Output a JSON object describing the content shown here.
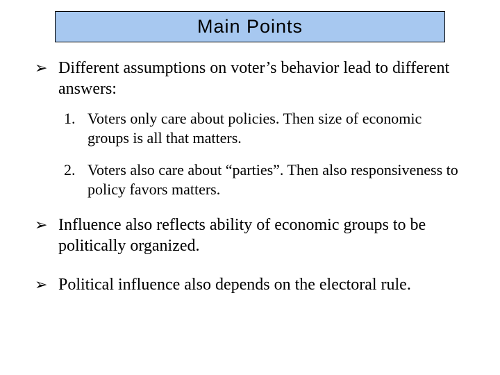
{
  "colors": {
    "title_bg": "#a7c8f0",
    "title_border": "#000000",
    "text": "#000000",
    "background": "#ffffff"
  },
  "typography": {
    "title_font": "Comic Sans MS",
    "title_fontsize": 27,
    "body_font": "Times New Roman",
    "bullet_fontsize": 24,
    "numbered_fontsize": 22
  },
  "title": "Main Points",
  "bullets": [
    {
      "marker": "➢",
      "text": "Different assumptions on voter’s behavior lead to different answers:"
    },
    {
      "marker": "➢",
      "text": "Influence also reflects ability of economic groups to be politically organized."
    },
    {
      "marker": "➢",
      "text": "Political influence also depends on the electoral rule."
    }
  ],
  "numbered": [
    {
      "marker": "1.",
      "text": "Voters only care about policies. Then size of economic groups is all that matters."
    },
    {
      "marker": "2.",
      "text": "Voters also care about “parties”. Then also responsiveness to policy favors matters."
    }
  ]
}
